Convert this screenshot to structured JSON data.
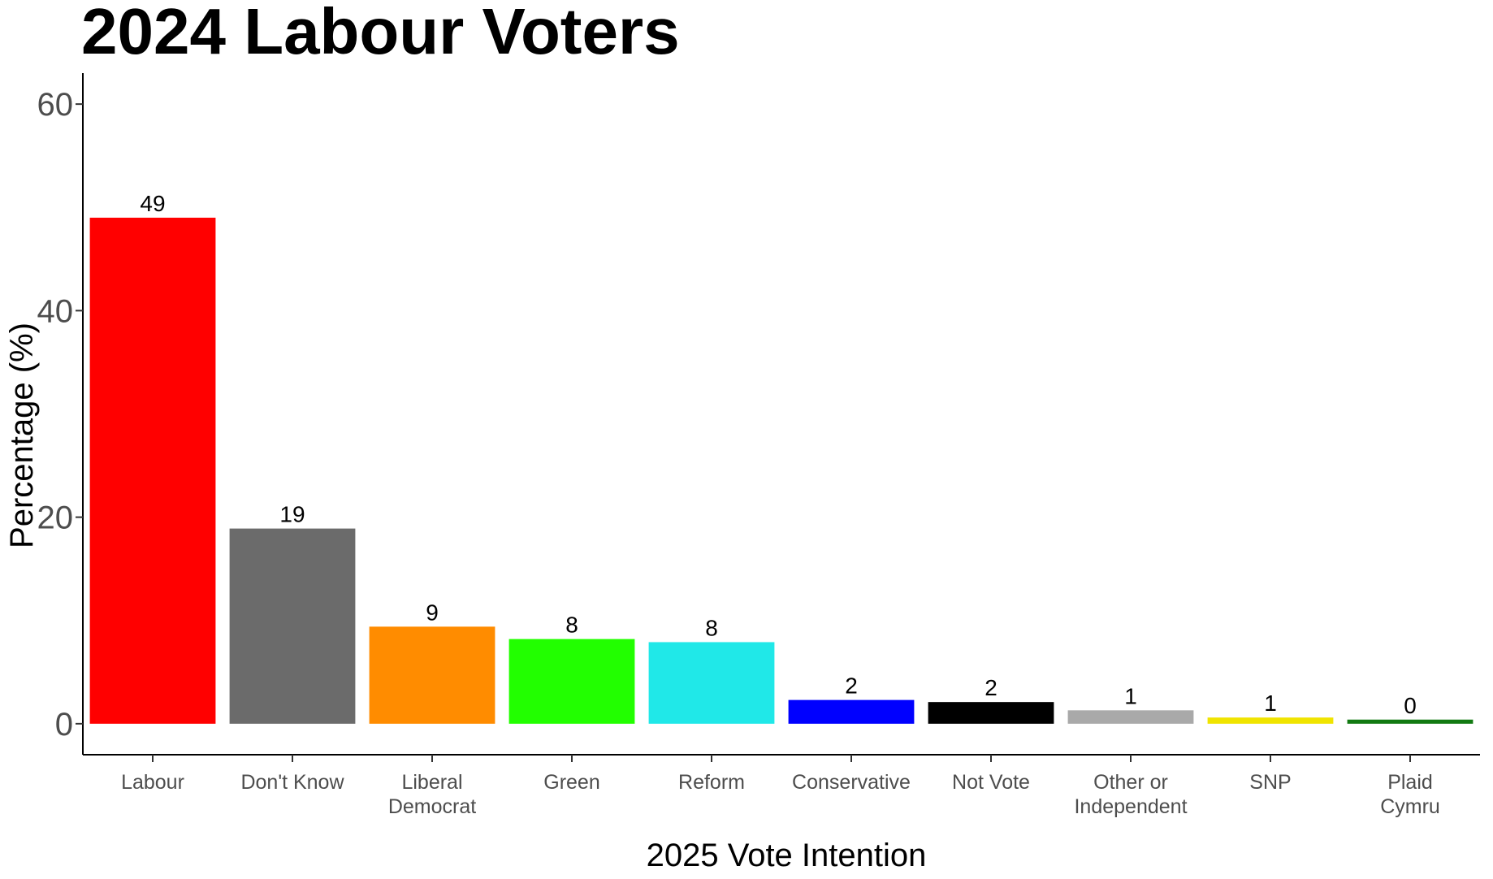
{
  "chart_data": {
    "type": "bar",
    "title": "2024 Labour Voters",
    "xlabel": "2025 Vote Intention",
    "ylabel": "Percentage (%)",
    "ylim": [
      -3,
      63
    ],
    "yticks": [
      0,
      20,
      40,
      60
    ],
    "grid": false,
    "legend": "none",
    "categories": [
      [
        "Labour"
      ],
      [
        "Don't Know"
      ],
      [
        "Liberal",
        "Democrat"
      ],
      [
        "Green"
      ],
      [
        "Reform"
      ],
      [
        "Conservative"
      ],
      [
        "Not Vote"
      ],
      [
        "Other or",
        "Independent"
      ],
      [
        "SNP"
      ],
      [
        "Plaid",
        "Cymru"
      ]
    ],
    "values": [
      49,
      18.9,
      9.4,
      8.2,
      7.9,
      2.3,
      2.1,
      1.3,
      0.6,
      0.4
    ],
    "data_labels": [
      "49",
      "19",
      "9",
      "8",
      "8",
      "2",
      "2",
      "1",
      "1",
      "0"
    ],
    "colors": [
      "#ff0000",
      "#6b6b6b",
      "#ff8c00",
      "#22ff00",
      "#20e8e8",
      "#0000ff",
      "#000000",
      "#a9a9a9",
      "#f0e400",
      "#127a12"
    ]
  }
}
